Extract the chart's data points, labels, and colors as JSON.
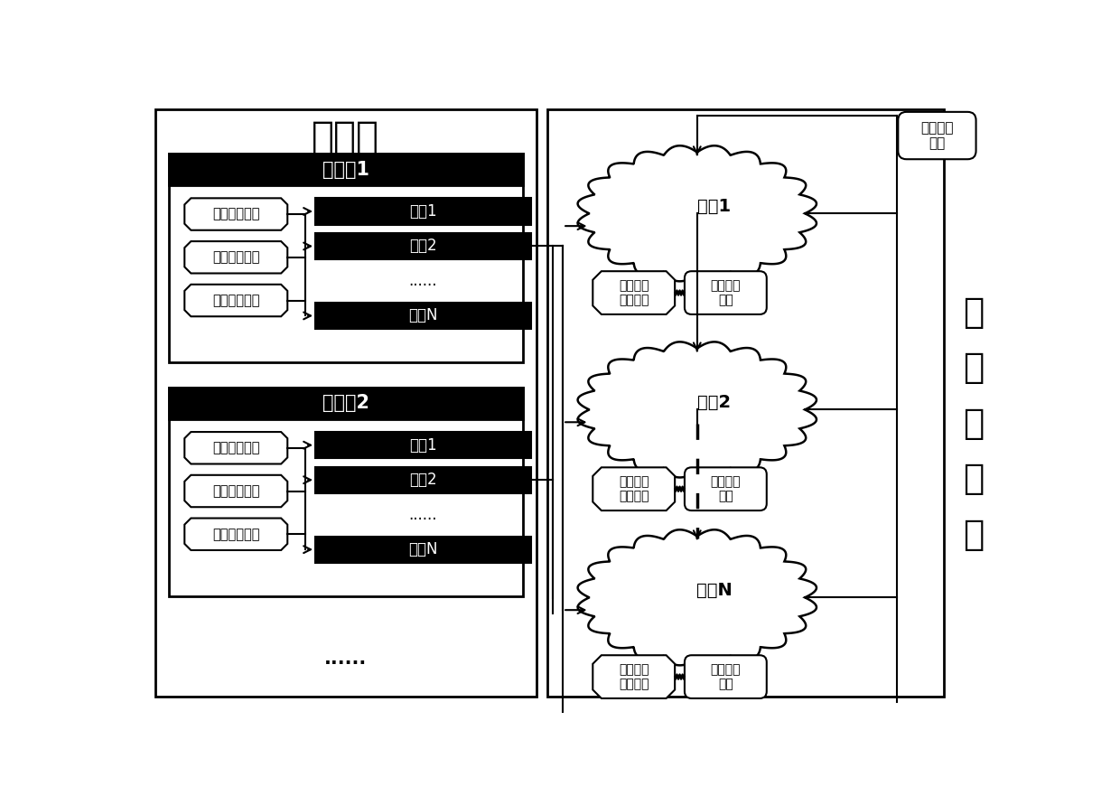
{
  "title_client": "客户端",
  "title_blockchain_chars": [
    "区",
    "块",
    "链",
    "平",
    "台"
  ],
  "client1_title": "客户端1",
  "client2_title": "客户端2",
  "modules_left": [
    "账户管理模块",
    "事务处理模块",
    "负载均衡模块"
  ],
  "acc_labels": [
    "账户1",
    "账户2",
    "......",
    "账户N"
  ],
  "subnet_labels": [
    "子网1",
    "子网2",
    "子网N"
  ],
  "subnet_module_left": "子网事务\n处理模块",
  "subnet_module_right": "数据服务\n模块",
  "network_partition": "网络分区\n模块",
  "dots": "......",
  "bg_color": "#ffffff",
  "black": "#000000",
  "white": "#ffffff"
}
